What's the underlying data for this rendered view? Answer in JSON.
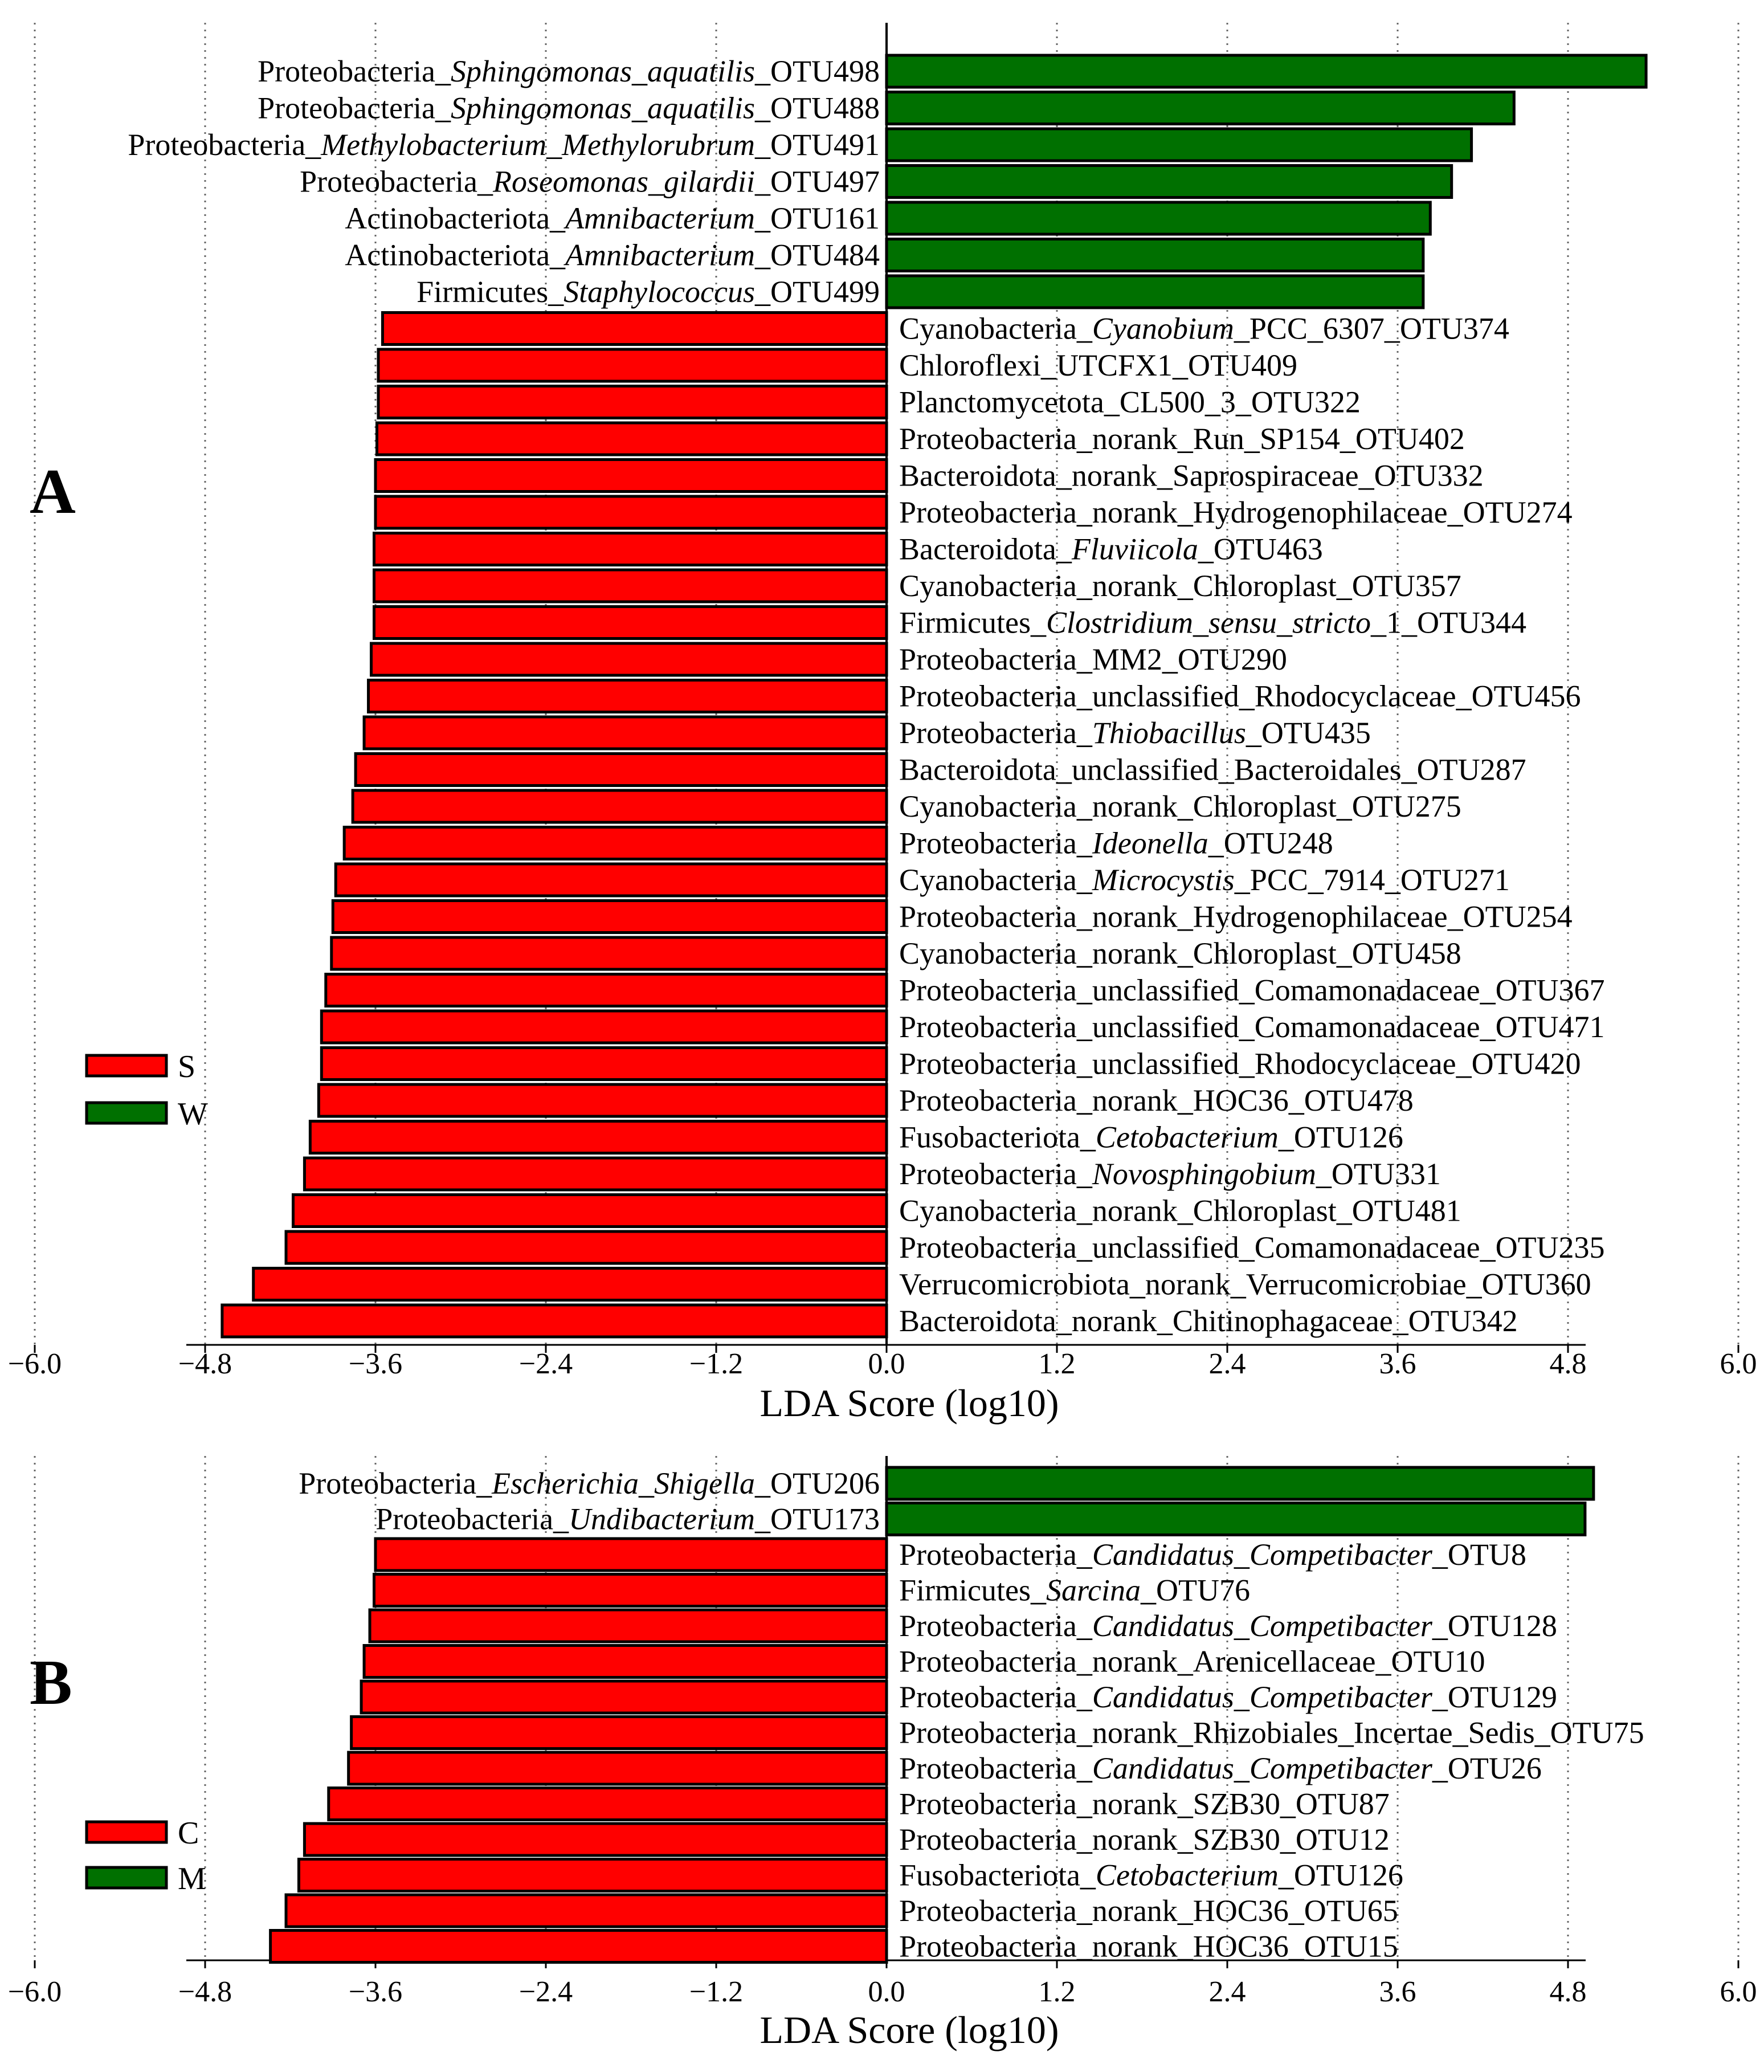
{
  "chart_data": [
    {
      "panel_label": "A",
      "type": "bar",
      "orientation": "horizontal",
      "xlabel": "LDA Score (log10)",
      "x_ticks": [
        "−6.0",
        "−4.8",
        "−3.6",
        "−2.4",
        "−1.2",
        "0.0",
        "1.2",
        "2.4",
        "3.6",
        "4.8",
        "6.0"
      ],
      "xlim": [
        -6.0,
        6.0
      ],
      "grid": "vertical dotted",
      "legend": {
        "position": "left-middle",
        "items": [
          {
            "label": "S",
            "color": "#ff0000"
          },
          {
            "label": "W",
            "color": "#007000"
          }
        ]
      },
      "bars": [
        {
          "label": [
            [
              "Proteobacteria_",
              false
            ],
            [
              "Sphingomonas_aquatilis",
              true
            ],
            [
              "_OTU498",
              false
            ]
          ],
          "value": 5.35,
          "group": "W"
        },
        {
          "label": [
            [
              "Proteobacteria_",
              false
            ],
            [
              "Sphingomonas_aquatilis",
              true
            ],
            [
              "_OTU488",
              false
            ]
          ],
          "value": 4.42,
          "group": "W"
        },
        {
          "label": [
            [
              "Proteobacteria_",
              false
            ],
            [
              "Methylobacterium_Methylorubrum",
              true
            ],
            [
              "_OTU491",
              false
            ]
          ],
          "value": 4.12,
          "group": "W"
        },
        {
          "label": [
            [
              "Proteobacteria_",
              false
            ],
            [
              "Roseomonas_gilardii",
              true
            ],
            [
              "_OTU497",
              false
            ]
          ],
          "value": 3.98,
          "group": "W"
        },
        {
          "label": [
            [
              "Actinobacteriota_",
              false
            ],
            [
              "Amnibacterium",
              true
            ],
            [
              "_OTU161",
              false
            ]
          ],
          "value": 3.83,
          "group": "W"
        },
        {
          "label": [
            [
              "Actinobacteriota_",
              false
            ],
            [
              "Amnibacterium",
              true
            ],
            [
              "_OTU484",
              false
            ]
          ],
          "value": 3.78,
          "group": "W"
        },
        {
          "label": [
            [
              "Firmicutes_",
              false
            ],
            [
              "Staphylococcus",
              true
            ],
            [
              "_OTU499",
              false
            ]
          ],
          "value": 3.78,
          "group": "W"
        },
        {
          "label": [
            [
              "Cyanobacteria_",
              false
            ],
            [
              "Cyanobium",
              true
            ],
            [
              "_PCC_6307_OTU374",
              false
            ]
          ],
          "value": -3.55,
          "group": "S"
        },
        {
          "label": [
            [
              "Chloroflexi_UTCFX1_OTU409",
              false
            ]
          ],
          "value": -3.58,
          "group": "S"
        },
        {
          "label": [
            [
              "Planctomycetota_CL500_3_OTU322",
              false
            ]
          ],
          "value": -3.58,
          "group": "S"
        },
        {
          "label": [
            [
              "Proteobacteria_norank_Run_SP154_OTU402",
              false
            ]
          ],
          "value": -3.59,
          "group": "S"
        },
        {
          "label": [
            [
              "Bacteroidota_norank_Saprospiraceae_OTU332",
              false
            ]
          ],
          "value": -3.6,
          "group": "S"
        },
        {
          "label": [
            [
              "Proteobacteria_norank_Hydrogenophilaceae_OTU274",
              false
            ]
          ],
          "value": -3.6,
          "group": "S"
        },
        {
          "label": [
            [
              "Bacteroidota_",
              false
            ],
            [
              "Fluviicola",
              true
            ],
            [
              "_OTU463",
              false
            ]
          ],
          "value": -3.61,
          "group": "S"
        },
        {
          "label": [
            [
              "Cyanobacteria_norank_Chloroplast_OTU357",
              false
            ]
          ],
          "value": -3.61,
          "group": "S"
        },
        {
          "label": [
            [
              "Firmicutes_",
              false
            ],
            [
              "Clostridium_sensu_stricto",
              true
            ],
            [
              "_1_OTU344",
              false
            ]
          ],
          "value": -3.61,
          "group": "S"
        },
        {
          "label": [
            [
              "Proteobacteria_MM2_OTU290",
              false
            ]
          ],
          "value": -3.63,
          "group": "S"
        },
        {
          "label": [
            [
              "Proteobacteria_unclassified_Rhodocyclaceae_OTU456",
              false
            ]
          ],
          "value": -3.65,
          "group": "S"
        },
        {
          "label": [
            [
              "Proteobacteria_",
              false
            ],
            [
              "Thiobacillus",
              true
            ],
            [
              "_OTU435",
              false
            ]
          ],
          "value": -3.68,
          "group": "S"
        },
        {
          "label": [
            [
              "Bacteroidota_unclassified_Bacteroidales_OTU287",
              false
            ]
          ],
          "value": -3.74,
          "group": "S"
        },
        {
          "label": [
            [
              "Cyanobacteria_norank_Chloroplast_OTU275",
              false
            ]
          ],
          "value": -3.76,
          "group": "S"
        },
        {
          "label": [
            [
              "Proteobacteria_",
              false
            ],
            [
              "Ideonella",
              true
            ],
            [
              "_OTU248",
              false
            ]
          ],
          "value": -3.82,
          "group": "S"
        },
        {
          "label": [
            [
              "Cyanobacteria_",
              false
            ],
            [
              "Microcystis",
              true
            ],
            [
              "_PCC_7914_OTU271",
              false
            ]
          ],
          "value": -3.88,
          "group": "S"
        },
        {
          "label": [
            [
              "Proteobacteria_norank_Hydrogenophilaceae_OTU254",
              false
            ]
          ],
          "value": -3.9,
          "group": "S"
        },
        {
          "label": [
            [
              "Cyanobacteria_norank_Chloroplast_OTU458",
              false
            ]
          ],
          "value": -3.91,
          "group": "S"
        },
        {
          "label": [
            [
              "Proteobacteria_unclassified_Comamonadaceae_OTU367",
              false
            ]
          ],
          "value": -3.95,
          "group": "S"
        },
        {
          "label": [
            [
              "Proteobacteria_unclassified_Comamonadaceae_OTU471",
              false
            ]
          ],
          "value": -3.98,
          "group": "S"
        },
        {
          "label": [
            [
              "Proteobacteria_unclassified_Rhodocyclaceae_OTU420",
              false
            ]
          ],
          "value": -3.98,
          "group": "S"
        },
        {
          "label": [
            [
              "Proteobacteria_norank_HOC36_OTU478",
              false
            ]
          ],
          "value": -4.0,
          "group": "S"
        },
        {
          "label": [
            [
              "Fusobacteriota_",
              false
            ],
            [
              "Cetobacterium",
              true
            ],
            [
              "_OTU126",
              false
            ]
          ],
          "value": -4.06,
          "group": "S"
        },
        {
          "label": [
            [
              "Proteobacteria_",
              false
            ],
            [
              "Novosphingobium",
              true
            ],
            [
              "_OTU331",
              false
            ]
          ],
          "value": -4.1,
          "group": "S"
        },
        {
          "label": [
            [
              "Cyanobacteria_norank_Chloroplast_OTU481",
              false
            ]
          ],
          "value": -4.18,
          "group": "S"
        },
        {
          "label": [
            [
              "Proteobacteria_unclassified_Comamonadaceae_OTU235",
              false
            ]
          ],
          "value": -4.23,
          "group": "S"
        },
        {
          "label": [
            [
              "Verrucomicrobiota_norank_Verrucomicrobiae_OTU360",
              false
            ]
          ],
          "value": -4.46,
          "group": "S"
        },
        {
          "label": [
            [
              "Bacteroidota_norank_Chitinophagaceae_OTU342",
              false
            ]
          ],
          "value": -4.68,
          "group": "S"
        }
      ]
    },
    {
      "panel_label": "B",
      "type": "bar",
      "orientation": "horizontal",
      "xlabel": "LDA Score (log10)",
      "x_ticks": [
        "−6.0",
        "−4.8",
        "−3.6",
        "−2.4",
        "−1.2",
        "0.0",
        "1.2",
        "2.4",
        "3.6",
        "4.8",
        "6.0"
      ],
      "xlim": [
        -6.0,
        6.0
      ],
      "grid": "vertical dotted",
      "legend": {
        "position": "left-middle",
        "items": [
          {
            "label": "C",
            "color": "#ff0000"
          },
          {
            "label": "M",
            "color": "#007000"
          }
        ]
      },
      "bars": [
        {
          "label": [
            [
              "Proteobacteria_",
              false
            ],
            [
              "Escherichia_Shigella",
              true
            ],
            [
              "_OTU206",
              false
            ]
          ],
          "value": 4.98,
          "group": "M"
        },
        {
          "label": [
            [
              "Proteobacteria_",
              false
            ],
            [
              "Undibacterium",
              true
            ],
            [
              "_OTU173",
              false
            ]
          ],
          "value": 4.92,
          "group": "M"
        },
        {
          "label": [
            [
              "Proteobacteria_",
              false
            ],
            [
              "Candidatus_Competibacter",
              true
            ],
            [
              "_OTU8",
              false
            ]
          ],
          "value": -3.6,
          "group": "C"
        },
        {
          "label": [
            [
              "Firmicutes_",
              false
            ],
            [
              "Sarcina",
              true
            ],
            [
              "_OTU76",
              false
            ]
          ],
          "value": -3.61,
          "group": "C"
        },
        {
          "label": [
            [
              "Proteobacteria_",
              false
            ],
            [
              "Candidatus_Competibacter",
              true
            ],
            [
              "_OTU128",
              false
            ]
          ],
          "value": -3.64,
          "group": "C"
        },
        {
          "label": [
            [
              "Proteobacteria_norank_Arenicellaceae_OTU10",
              false
            ]
          ],
          "value": -3.68,
          "group": "C"
        },
        {
          "label": [
            [
              "Proteobacteria_",
              false
            ],
            [
              "Candidatus_Competibacter",
              true
            ],
            [
              "_OTU129",
              false
            ]
          ],
          "value": -3.7,
          "group": "C"
        },
        {
          "label": [
            [
              "Proteobacteria_norank_Rhizobiales_Incertae_Sedis_OTU75",
              false
            ]
          ],
          "value": -3.77,
          "group": "C"
        },
        {
          "label": [
            [
              "Proteobacteria_",
              false
            ],
            [
              "Candidatus_Competibacter",
              true
            ],
            [
              "_OTU26",
              false
            ]
          ],
          "value": -3.79,
          "group": "C"
        },
        {
          "label": [
            [
              "Proteobacteria_norank_SZB30_OTU87",
              false
            ]
          ],
          "value": -3.93,
          "group": "C"
        },
        {
          "label": [
            [
              "Proteobacteria_norank_SZB30_OTU12",
              false
            ]
          ],
          "value": -4.1,
          "group": "C"
        },
        {
          "label": [
            [
              "Fusobacteriota_",
              false
            ],
            [
              "Cetobacterium",
              true
            ],
            [
              "_OTU126",
              false
            ]
          ],
          "value": -4.14,
          "group": "C"
        },
        {
          "label": [
            [
              "Proteobacteria_norank_HOC36_OTU65",
              false
            ]
          ],
          "value": -4.23,
          "group": "C"
        },
        {
          "label": [
            [
              "Proteobacteria_norank_HOC36_OTU15",
              false
            ]
          ],
          "value": -4.34,
          "group": "C"
        }
      ]
    }
  ]
}
